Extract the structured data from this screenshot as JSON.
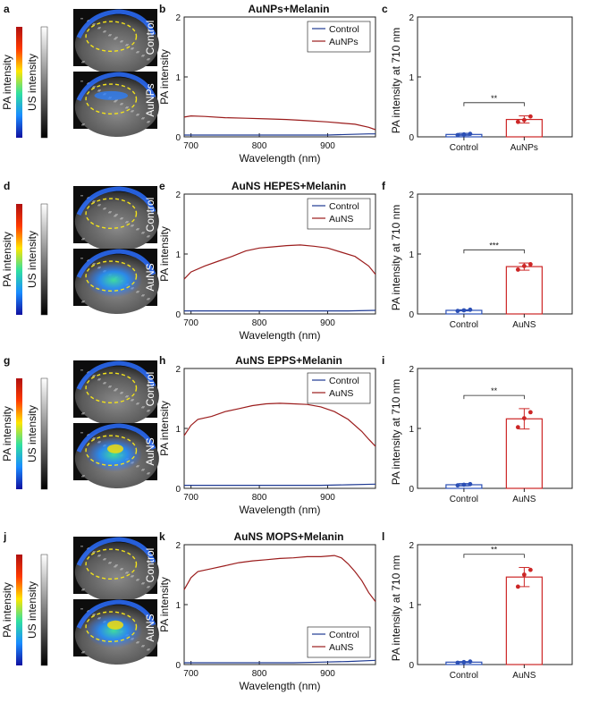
{
  "panel_letters": [
    "a",
    "b",
    "c",
    "d",
    "e",
    "f",
    "g",
    "h",
    "i",
    "j",
    "k",
    "l"
  ],
  "colorbar_labels": {
    "pa": "PA intensity",
    "us": "US intensity"
  },
  "colors": {
    "control": "#1f3a93",
    "treated": "#9b1c1c",
    "control_bar": "#2b4fb5",
    "treated_bar": "#cc2626"
  },
  "rows": [
    {
      "image_labels": [
        "Control",
        "AuNPs"
      ]
    },
    {
      "image_labels": [
        "Control",
        "AuNS"
      ]
    },
    {
      "image_labels": [
        "Control",
        "AuNS"
      ]
    },
    {
      "image_labels": [
        "Control",
        "AuNS"
      ]
    }
  ],
  "chart_data": [
    {
      "type": "line",
      "panel": "b",
      "title": "AuNPs+Melanin",
      "xlabel": "Wavelength (nm)",
      "ylabel": "PA intensity",
      "xlim": [
        690,
        970
      ],
      "ylim": [
        0,
        2
      ],
      "xticks": [
        "700",
        "800",
        "900"
      ],
      "yticks": [
        "0",
        "1",
        "2"
      ],
      "legend_position": "top-right",
      "series": [
        {
          "name": "Control",
          "x": [
            690,
            720,
            750,
            780,
            810,
            840,
            870,
            900,
            930,
            960,
            970
          ],
          "values": [
            0.03,
            0.03,
            0.03,
            0.03,
            0.03,
            0.03,
            0.03,
            0.03,
            0.04,
            0.05,
            0.05
          ]
        },
        {
          "name": "AuNPs",
          "x": [
            690,
            700,
            720,
            750,
            780,
            810,
            840,
            870,
            900,
            920,
            940,
            960,
            970
          ],
          "values": [
            0.33,
            0.35,
            0.34,
            0.32,
            0.31,
            0.3,
            0.29,
            0.27,
            0.25,
            0.23,
            0.21,
            0.16,
            0.12
          ]
        }
      ]
    },
    {
      "type": "bar",
      "panel": "c",
      "title": "",
      "xlabel": "",
      "ylabel": "PA intensity at 710 nm",
      "ylim": [
        0,
        2
      ],
      "yticks": [
        "0",
        "1",
        "2"
      ],
      "categories": [
        "Control",
        "AuNPs"
      ],
      "values": [
        0.04,
        0.29
      ],
      "errors": [
        0.02,
        0.06
      ],
      "points": [
        [
          0.03,
          0.04,
          0.05
        ],
        [
          0.25,
          0.28,
          0.34
        ]
      ],
      "significance": "**"
    },
    {
      "type": "line",
      "panel": "e",
      "title": "AuNS HEPES+Melanin",
      "xlabel": "Wavelength (nm)",
      "ylabel": "PA intensity",
      "xlim": [
        690,
        970
      ],
      "ylim": [
        0,
        2
      ],
      "xticks": [
        "700",
        "800",
        "900"
      ],
      "yticks": [
        "0",
        "1",
        "2"
      ],
      "legend_position": "top-right",
      "series": [
        {
          "name": "Control",
          "x": [
            690,
            730,
            770,
            810,
            850,
            890,
            930,
            970
          ],
          "values": [
            0.05,
            0.05,
            0.05,
            0.05,
            0.05,
            0.05,
            0.05,
            0.06
          ]
        },
        {
          "name": "AuNS",
          "x": [
            690,
            700,
            720,
            740,
            760,
            780,
            800,
            820,
            840,
            860,
            880,
            900,
            920,
            940,
            960,
            970
          ],
          "values": [
            0.58,
            0.7,
            0.8,
            0.88,
            0.96,
            1.05,
            1.1,
            1.12,
            1.14,
            1.15,
            1.13,
            1.1,
            1.03,
            0.96,
            0.8,
            0.66
          ]
        }
      ]
    },
    {
      "type": "bar",
      "panel": "f",
      "title": "",
      "xlabel": "",
      "ylabel": "PA intensity at 710 nm",
      "ylim": [
        0,
        2
      ],
      "yticks": [
        "0",
        "1",
        "2"
      ],
      "categories": [
        "Control",
        "AuNS"
      ],
      "values": [
        0.06,
        0.79
      ],
      "errors": [
        0.01,
        0.06
      ],
      "points": [
        [
          0.05,
          0.06,
          0.07
        ],
        [
          0.74,
          0.8,
          0.83
        ]
      ],
      "significance": "***"
    },
    {
      "type": "line",
      "panel": "h",
      "title": "AuNS EPPS+Melanin",
      "xlabel": "Wavelength (nm)",
      "ylabel": "PA intensity",
      "xlim": [
        690,
        970
      ],
      "ylim": [
        0,
        2
      ],
      "xticks": [
        "700",
        "800",
        "900"
      ],
      "yticks": [
        "0",
        "1",
        "2"
      ],
      "legend_position": "top-right",
      "series": [
        {
          "name": "Control",
          "x": [
            690,
            730,
            770,
            810,
            850,
            890,
            930,
            970
          ],
          "values": [
            0.05,
            0.05,
            0.05,
            0.05,
            0.05,
            0.05,
            0.06,
            0.07
          ]
        },
        {
          "name": "AuNS",
          "x": [
            690,
            700,
            710,
            730,
            750,
            770,
            790,
            810,
            830,
            850,
            870,
            890,
            910,
            930,
            950,
            960,
            970
          ],
          "values": [
            0.88,
            1.05,
            1.15,
            1.2,
            1.28,
            1.33,
            1.38,
            1.41,
            1.42,
            1.41,
            1.4,
            1.36,
            1.28,
            1.15,
            0.95,
            0.82,
            0.7
          ]
        }
      ]
    },
    {
      "type": "bar",
      "panel": "i",
      "title": "",
      "xlabel": "",
      "ylabel": "PA intensity at 710 nm",
      "ylim": [
        0,
        2
      ],
      "yticks": [
        "0",
        "1",
        "2"
      ],
      "categories": [
        "Control",
        "AuNS"
      ],
      "values": [
        0.06,
        1.16
      ],
      "errors": [
        0.02,
        0.17
      ],
      "points": [
        [
          0.05,
          0.06,
          0.07
        ],
        [
          1.02,
          1.17,
          1.27
        ]
      ],
      "significance": "**"
    },
    {
      "type": "line",
      "panel": "k",
      "title": "AuNS MOPS+Melanin",
      "xlabel": "Wavelength (nm)",
      "ylabel": "PA intensity",
      "xlim": [
        690,
        970
      ],
      "ylim": [
        0,
        2
      ],
      "xticks": [
        "700",
        "800",
        "900"
      ],
      "yticks": [
        "0",
        "1",
        "2"
      ],
      "legend_position": "bottom-right",
      "series": [
        {
          "name": "Control",
          "x": [
            690,
            730,
            770,
            810,
            850,
            890,
            930,
            970
          ],
          "values": [
            0.03,
            0.03,
            0.03,
            0.03,
            0.03,
            0.04,
            0.05,
            0.07
          ]
        },
        {
          "name": "AuNS",
          "x": [
            690,
            700,
            710,
            730,
            750,
            770,
            790,
            810,
            830,
            850,
            870,
            890,
            910,
            920,
            930,
            940,
            950,
            960,
            970
          ],
          "values": [
            1.25,
            1.45,
            1.55,
            1.6,
            1.65,
            1.7,
            1.73,
            1.75,
            1.77,
            1.78,
            1.8,
            1.8,
            1.82,
            1.78,
            1.68,
            1.55,
            1.4,
            1.2,
            1.05
          ]
        }
      ]
    },
    {
      "type": "bar",
      "panel": "l",
      "title": "",
      "xlabel": "",
      "ylabel": "PA intensity at 710 nm",
      "ylim": [
        0,
        2
      ],
      "yticks": [
        "0",
        "1",
        "2"
      ],
      "categories": [
        "Control",
        "AuNS"
      ],
      "values": [
        0.04,
        1.46
      ],
      "errors": [
        0.01,
        0.16
      ],
      "points": [
        [
          0.03,
          0.04,
          0.05
        ],
        [
          1.3,
          1.5,
          1.58
        ]
      ],
      "significance": "**"
    }
  ]
}
